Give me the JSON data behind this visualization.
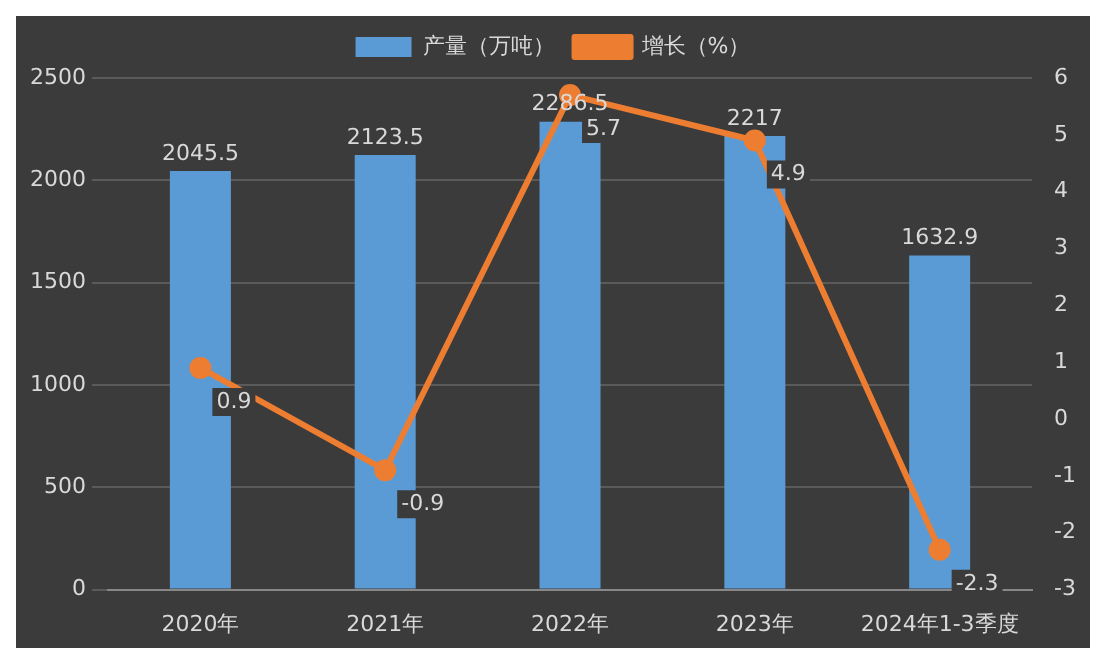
{
  "chart_data": {
    "type": "bar",
    "categories": [
      "2020年",
      "2021年",
      "2022年",
      "2023年",
      "2024年1-3季度"
    ],
    "series": [
      {
        "name": "产量（万吨）",
        "color": "#5b9bd5",
        "values": [
          2045.5,
          2123.5,
          2286.5,
          2217,
          1632.9
        ]
      },
      {
        "name": "增长（%）",
        "type": "line",
        "axis": "y2",
        "color": "#ed7d31",
        "values": [
          0.9,
          -0.9,
          5.7,
          4.9,
          -2.3
        ]
      }
    ],
    "ylim": [
      0,
      2500
    ],
    "yticks": [
      0,
      500,
      1000,
      1500,
      2000,
      2500
    ],
    "y2lim": [
      -3,
      6
    ],
    "y2ticks": [
      -3,
      -2,
      -1,
      0,
      1,
      2,
      3,
      4,
      5,
      6
    ],
    "grid": "y",
    "legend": "top",
    "marker": "circle",
    "data_labels": true
  }
}
